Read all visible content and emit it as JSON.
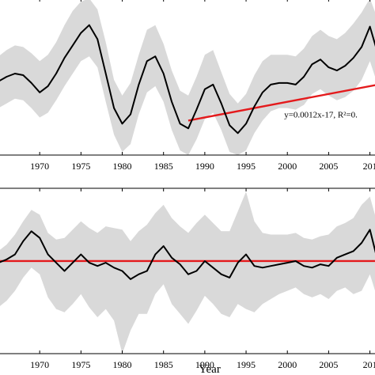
{
  "chart_data": [
    {
      "type": "line",
      "panel": "top",
      "xlim": [
        1965,
        2011
      ],
      "ylim": [
        0,
        1
      ],
      "x_ticks": [
        1970,
        1975,
        1980,
        1985,
        1990,
        1995,
        2000,
        2005,
        2010
      ],
      "tick_labels": [
        "1970",
        "1975",
        "1980",
        "1985",
        "1990",
        "1995",
        "2000",
        "2005",
        "201"
      ],
      "xlabel": "",
      "series": [
        {
          "role": "mean",
          "color": "#000000",
          "points": [
            [
              1965,
              0.47
            ],
            [
              1966,
              0.5
            ],
            [
              1967,
              0.52
            ],
            [
              1968,
              0.51
            ],
            [
              1969,
              0.46
            ],
            [
              1970,
              0.4
            ],
            [
              1971,
              0.44
            ],
            [
              1972,
              0.52
            ],
            [
              1973,
              0.62
            ],
            [
              1974,
              0.7
            ],
            [
              1975,
              0.78
            ],
            [
              1976,
              0.83
            ],
            [
              1977,
              0.74
            ],
            [
              1978,
              0.52
            ],
            [
              1979,
              0.3
            ],
            [
              1980,
              0.2
            ],
            [
              1981,
              0.26
            ],
            [
              1982,
              0.45
            ],
            [
              1983,
              0.6
            ],
            [
              1984,
              0.63
            ],
            [
              1985,
              0.52
            ],
            [
              1986,
              0.34
            ],
            [
              1987,
              0.2
            ],
            [
              1988,
              0.17
            ],
            [
              1989,
              0.29
            ],
            [
              1990,
              0.42
            ],
            [
              1991,
              0.45
            ],
            [
              1992,
              0.33
            ],
            [
              1993,
              0.19
            ],
            [
              1994,
              0.14
            ],
            [
              1995,
              0.2
            ],
            [
              1996,
              0.31
            ],
            [
              1997,
              0.4
            ],
            [
              1998,
              0.45
            ],
            [
              1999,
              0.46
            ],
            [
              2000,
              0.46
            ],
            [
              2001,
              0.45
            ],
            [
              2002,
              0.5
            ],
            [
              2003,
              0.58
            ],
            [
              2004,
              0.61
            ],
            [
              2005,
              0.56
            ],
            [
              2006,
              0.54
            ],
            [
              2007,
              0.57
            ],
            [
              2008,
              0.62
            ],
            [
              2009,
              0.69
            ],
            [
              2010,
              0.82
            ],
            [
              2011,
              0.64
            ]
          ]
        }
      ],
      "band": {
        "color": "#d9d9d9",
        "lower": [
          0.3,
          0.33,
          0.36,
          0.35,
          0.3,
          0.24,
          0.27,
          0.35,
          0.44,
          0.52,
          0.6,
          0.63,
          0.56,
          0.34,
          0.13,
          0.02,
          0.07,
          0.26,
          0.4,
          0.44,
          0.34,
          0.16,
          0.03,
          0.0,
          0.1,
          0.23,
          0.27,
          0.16,
          0.02,
          0.0,
          0.03,
          0.14,
          0.22,
          0.28,
          0.3,
          0.3,
          0.29,
          0.32,
          0.39,
          0.42,
          0.38,
          0.35,
          0.37,
          0.41,
          0.48,
          0.6,
          0.44
        ],
        "upper": [
          0.63,
          0.67,
          0.7,
          0.69,
          0.65,
          0.6,
          0.64,
          0.72,
          0.83,
          0.92,
          0.98,
          1.0,
          0.93,
          0.72,
          0.48,
          0.38,
          0.46,
          0.64,
          0.8,
          0.83,
          0.71,
          0.54,
          0.41,
          0.38,
          0.5,
          0.64,
          0.67,
          0.53,
          0.39,
          0.33,
          0.39,
          0.51,
          0.6,
          0.64,
          0.64,
          0.64,
          0.63,
          0.68,
          0.76,
          0.8,
          0.76,
          0.74,
          0.78,
          0.84,
          0.91,
          1.0,
          0.86
        ]
      },
      "trend": {
        "color": "#e41a1c",
        "x": [
          1988,
          2011
        ],
        "y": [
          0.22,
          0.45
        ]
      },
      "annotation": {
        "text": "y=0.0012x-17, R²=0.",
        "x": 2000,
        "y": 0.24
      }
    },
    {
      "type": "line",
      "panel": "bottom",
      "xlim": [
        1965,
        2011
      ],
      "ylim": [
        0,
        1
      ],
      "x_ticks": [
        1970,
        1975,
        1980,
        1985,
        1990,
        1995,
        2000,
        2005,
        2010
      ],
      "tick_labels": [
        "1970",
        "1975",
        "1980",
        "1985",
        "1990",
        "1995",
        "2000",
        "2005",
        "201"
      ],
      "xlabel": "Year",
      "series": [
        {
          "role": "mean",
          "color": "#000000",
          "points": [
            [
              1965,
              0.55
            ],
            [
              1966,
              0.57
            ],
            [
              1967,
              0.6
            ],
            [
              1968,
              0.68
            ],
            [
              1969,
              0.74
            ],
            [
              1970,
              0.7
            ],
            [
              1971,
              0.6
            ],
            [
              1972,
              0.55
            ],
            [
              1973,
              0.5
            ],
            [
              1974,
              0.55
            ],
            [
              1975,
              0.6
            ],
            [
              1976,
              0.55
            ],
            [
              1977,
              0.53
            ],
            [
              1978,
              0.55
            ],
            [
              1979,
              0.52
            ],
            [
              1980,
              0.5
            ],
            [
              1981,
              0.45
            ],
            [
              1982,
              0.48
            ],
            [
              1983,
              0.5
            ],
            [
              1984,
              0.6
            ],
            [
              1985,
              0.65
            ],
            [
              1986,
              0.58
            ],
            [
              1987,
              0.54
            ],
            [
              1988,
              0.48
            ],
            [
              1989,
              0.5
            ],
            [
              1990,
              0.56
            ],
            [
              1991,
              0.52
            ],
            [
              1992,
              0.48
            ],
            [
              1993,
              0.46
            ],
            [
              1994,
              0.55
            ],
            [
              1995,
              0.6
            ],
            [
              1996,
              0.53
            ],
            [
              1997,
              0.52
            ],
            [
              1998,
              0.53
            ],
            [
              1999,
              0.54
            ],
            [
              2000,
              0.55
            ],
            [
              2001,
              0.56
            ],
            [
              2002,
              0.53
            ],
            [
              2003,
              0.52
            ],
            [
              2004,
              0.54
            ],
            [
              2005,
              0.53
            ],
            [
              2006,
              0.58
            ],
            [
              2007,
              0.6
            ],
            [
              2008,
              0.62
            ],
            [
              2009,
              0.67
            ],
            [
              2010,
              0.75
            ],
            [
              2011,
              0.55
            ]
          ]
        }
      ],
      "band": {
        "color": "#d9d9d9",
        "lower": [
          0.28,
          0.32,
          0.38,
          0.46,
          0.52,
          0.48,
          0.34,
          0.27,
          0.25,
          0.3,
          0.36,
          0.28,
          0.22,
          0.27,
          0.2,
          0.0,
          0.14,
          0.24,
          0.24,
          0.36,
          0.42,
          0.3,
          0.24,
          0.18,
          0.26,
          0.35,
          0.3,
          0.24,
          0.22,
          0.3,
          0.27,
          0.25,
          0.3,
          0.33,
          0.36,
          0.38,
          0.4,
          0.36,
          0.34,
          0.36,
          0.33,
          0.38,
          0.4,
          0.36,
          0.38,
          0.48,
          0.32
        ],
        "upper": [
          0.62,
          0.66,
          0.72,
          0.8,
          0.87,
          0.84,
          0.73,
          0.69,
          0.7,
          0.75,
          0.8,
          0.76,
          0.73,
          0.77,
          0.76,
          0.75,
          0.68,
          0.74,
          0.78,
          0.85,
          0.9,
          0.82,
          0.77,
          0.73,
          0.79,
          0.84,
          0.79,
          0.74,
          0.74,
          0.86,
          0.98,
          0.8,
          0.73,
          0.72,
          0.72,
          0.72,
          0.73,
          0.7,
          0.69,
          0.71,
          0.72,
          0.77,
          0.79,
          0.82,
          0.9,
          0.95,
          0.77
        ]
      },
      "trend": {
        "color": "#e41a1c",
        "x": [
          1965,
          2011
        ],
        "y": [
          0.56,
          0.56
        ]
      },
      "annotation": null
    }
  ]
}
